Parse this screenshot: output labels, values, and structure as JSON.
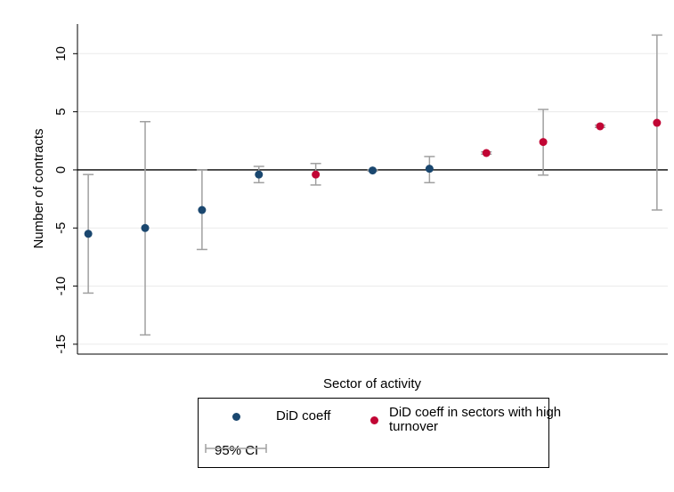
{
  "chart_data": {
    "type": "errorbar",
    "xlabel": "Sector of activity",
    "ylabel": "Number of contracts",
    "categories": [
      null,
      null,
      null,
      null,
      null,
      null,
      null,
      null,
      null,
      null,
      null
    ],
    "ylim": [
      -15.85,
      12.55
    ],
    "yticks": [
      -15,
      -10,
      -5,
      0,
      5,
      10
    ],
    "grid": true,
    "ci_label": "95% CI",
    "ci_color": "#a0a0a0",
    "series": [
      {
        "name": "DiD coeff",
        "color": "#1a476f",
        "values": [
          -5.5,
          -5.0,
          -3.45,
          -0.4,
          null,
          -0.05,
          0.1,
          null,
          null,
          null,
          null
        ],
        "ci_low": [
          -10.6,
          -14.2,
          -6.85,
          -1.1,
          null,
          -0.1,
          -1.1,
          null,
          null,
          null,
          null
        ],
        "ci_high": [
          -0.4,
          4.15,
          0.0,
          0.3,
          null,
          0.0,
          1.15,
          null,
          null,
          null,
          null
        ]
      },
      {
        "name": "DiD coeff in sectors with high turnover",
        "color": "#c10534",
        "values": [
          null,
          null,
          null,
          null,
          -0.4,
          null,
          null,
          1.45,
          2.4,
          3.75,
          4.05
        ],
        "ci_low": [
          null,
          null,
          null,
          null,
          -1.3,
          null,
          null,
          1.35,
          -0.45,
          3.65,
          -3.45
        ],
        "ci_high": [
          null,
          null,
          null,
          null,
          0.55,
          null,
          null,
          1.55,
          5.2,
          3.85,
          11.6
        ]
      }
    ]
  }
}
